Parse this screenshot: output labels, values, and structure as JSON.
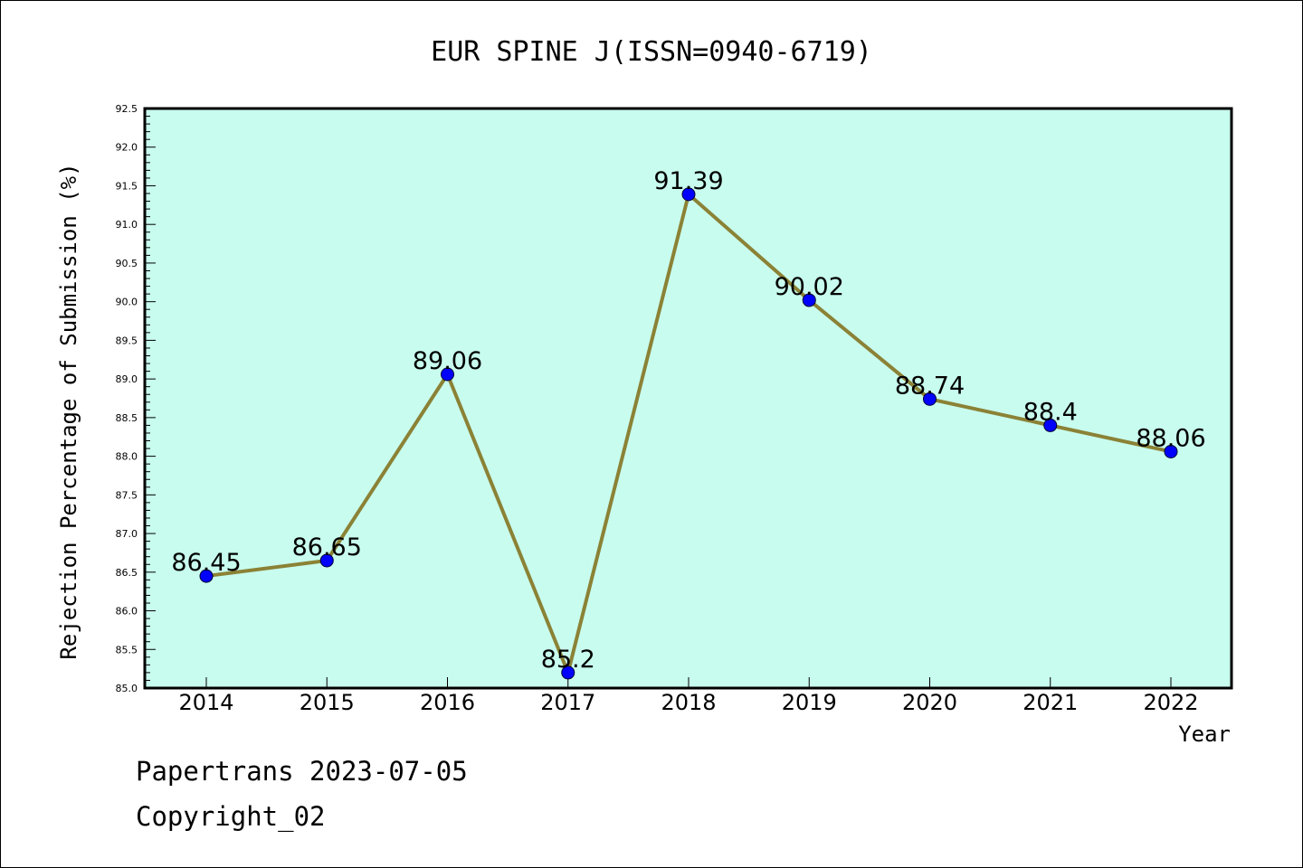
{
  "chart_data": {
    "type": "line",
    "title": "EUR SPINE J(ISSN=0940-6719)",
    "xlabel": "Year",
    "ylabel": "Rejection Percentage of Submission (%)",
    "categories": [
      "2014",
      "2015",
      "2016",
      "2017",
      "2018",
      "2019",
      "2020",
      "2021",
      "2022"
    ],
    "values": [
      86.45,
      86.65,
      89.06,
      85.2,
      91.39,
      90.02,
      88.74,
      88.4,
      88.06
    ],
    "data_labels": [
      "86.45",
      "86.65",
      "89.06",
      "85.2",
      "91.39",
      "90.02",
      "88.74",
      "88.4",
      "88.06"
    ],
    "ylim": [
      85.0,
      92.5
    ],
    "yticks": [
      "85.0",
      "85.5",
      "86.0",
      "86.5",
      "87.0",
      "87.5",
      "88.0",
      "88.5",
      "89.0",
      "89.5",
      "90.0",
      "90.5",
      "91.0",
      "91.5",
      "92.0",
      "92.5"
    ],
    "grid": false,
    "colors": {
      "plot_background": "#c8fcee",
      "line": "#8b8236",
      "marker": "#0000ff"
    }
  },
  "footer": {
    "line1": "Papertrans 2023-07-05",
    "line2": "Copyright_02"
  }
}
